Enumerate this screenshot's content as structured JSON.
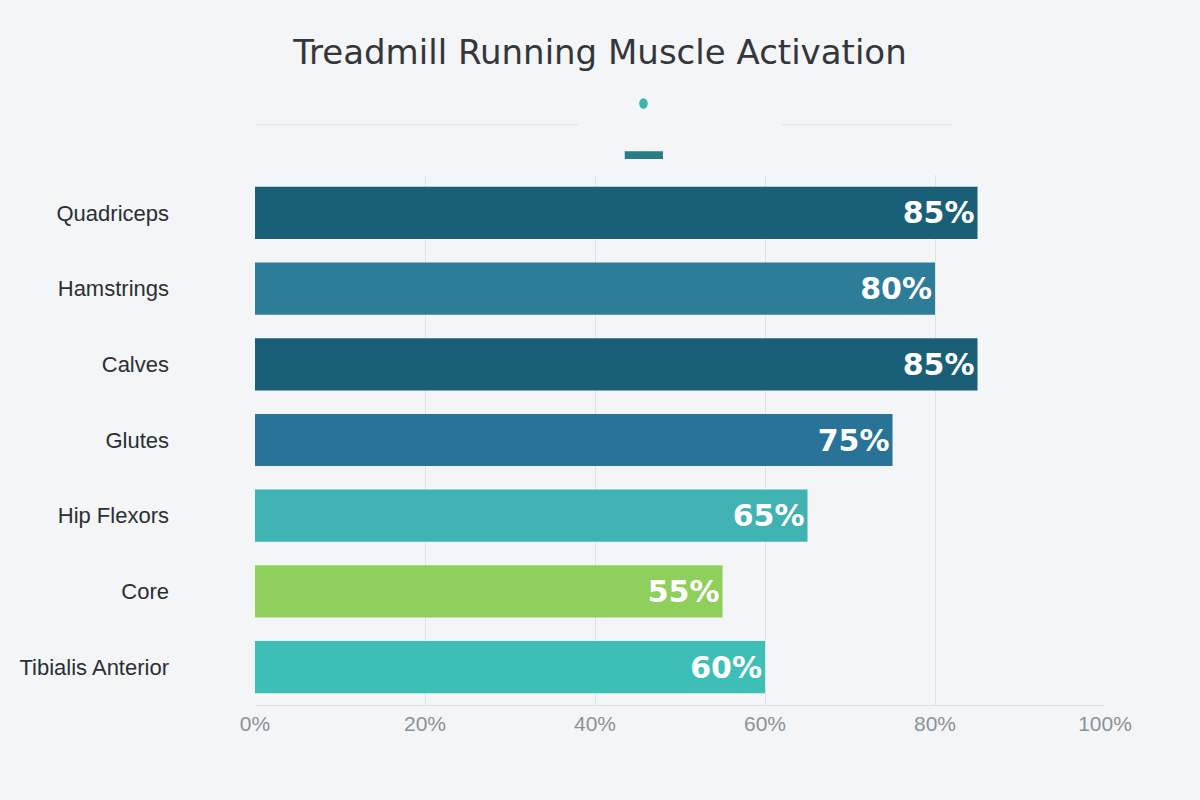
{
  "chart_data": {
    "type": "bar",
    "title": "Treadmill Running Muscle Activation",
    "orientation": "horizontal",
    "categories": [
      "Quadriceps",
      "Hamstrings",
      "Calves",
      "Glutes",
      "Hip Flexors",
      "Core",
      "Tibialis Anterior"
    ],
    "values": [
      85,
      80,
      85,
      75,
      65,
      55,
      60
    ],
    "value_labels": [
      "85%",
      "80%",
      "85%",
      "75%",
      "65%",
      "55%",
      "60%"
    ],
    "colors": [
      "#195f78",
      "#2d7c98",
      "#195f78",
      "#2a7398",
      "#40b2b2",
      "#8fcf5c",
      "#3dbfb7"
    ],
    "xlim": [
      0,
      100
    ],
    "xticks": [
      {
        "value": 0,
        "label": "0%"
      },
      {
        "value": 20,
        "label": "20%"
      },
      {
        "value": 40,
        "label": "40%"
      },
      {
        "value": 60,
        "label": "60%"
      },
      {
        "value": 80,
        "label": "80%"
      },
      {
        "value": 100,
        "label": "100%"
      }
    ],
    "grid": true,
    "data_labels": true
  }
}
